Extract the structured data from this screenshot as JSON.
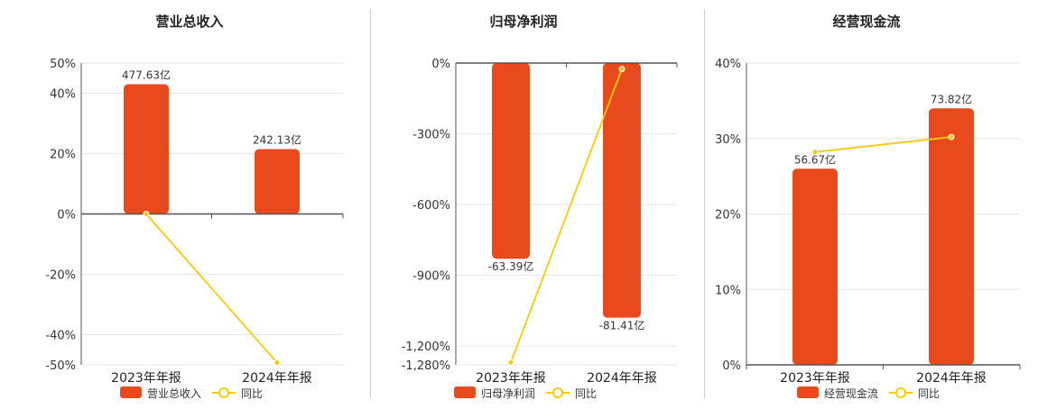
{
  "chart_data": [
    {
      "type": "bar",
      "title": "营业总收入",
      "categories": [
        "2023年年报",
        "2024年年报"
      ],
      "series": [
        {
          "name": "营业总收入",
          "type": "bar",
          "values": [
            43,
            21.5
          ],
          "labels": [
            "477.63亿",
            "242.13亿"
          ]
        },
        {
          "name": "同比",
          "type": "line",
          "values": [
            0,
            -49.3
          ]
        }
      ],
      "y_ticks": [
        "50%",
        "40%",
        "20%",
        "0%",
        "-20%",
        "-40%",
        "-50%"
      ],
      "y_tick_values": [
        50,
        40,
        20,
        0,
        -20,
        -40,
        -50
      ],
      "ylim": [
        -50,
        50
      ],
      "grid": true,
      "legend": "bottom"
    },
    {
      "type": "bar",
      "title": "归母净利润",
      "categories": [
        "2023年年报",
        "2024年年报"
      ],
      "series": [
        {
          "name": "归母净利润",
          "type": "bar",
          "values": [
            -830,
            -1080
          ],
          "labels": [
            "-63.39亿",
            "-81.41亿"
          ]
        },
        {
          "name": "同比",
          "type": "line",
          "values": [
            -1270,
            -25
          ]
        }
      ],
      "y_ticks": [
        "0%",
        "-300%",
        "-600%",
        "-900%",
        "-1,200%",
        "-1,280%"
      ],
      "y_tick_values": [
        0,
        -300,
        -600,
        -900,
        -1200,
        -1280
      ],
      "ylim": [
        -1280,
        0
      ],
      "grid": true,
      "legend": "bottom"
    },
    {
      "type": "bar",
      "title": "经营现金流",
      "categories": [
        "2023年年报",
        "2024年年报"
      ],
      "series": [
        {
          "name": "经营现金流",
          "type": "bar",
          "values": [
            26,
            34
          ],
          "labels": [
            "56.67亿",
            "73.82亿"
          ]
        },
        {
          "name": "同比",
          "type": "line",
          "values": [
            28.2,
            30.2
          ]
        }
      ],
      "y_ticks": [
        "40%",
        "30%",
        "20%",
        "10%",
        "0%"
      ],
      "y_tick_values": [
        40,
        30,
        20,
        10,
        0
      ],
      "ylim": [
        0,
        40
      ],
      "grid": true,
      "legend": "bottom"
    }
  ],
  "colors": {
    "bar": "#e84a1c",
    "line": "#f2cc0c",
    "grid": "#e6e6e6",
    "axis": "#555555",
    "text": "#333333"
  }
}
